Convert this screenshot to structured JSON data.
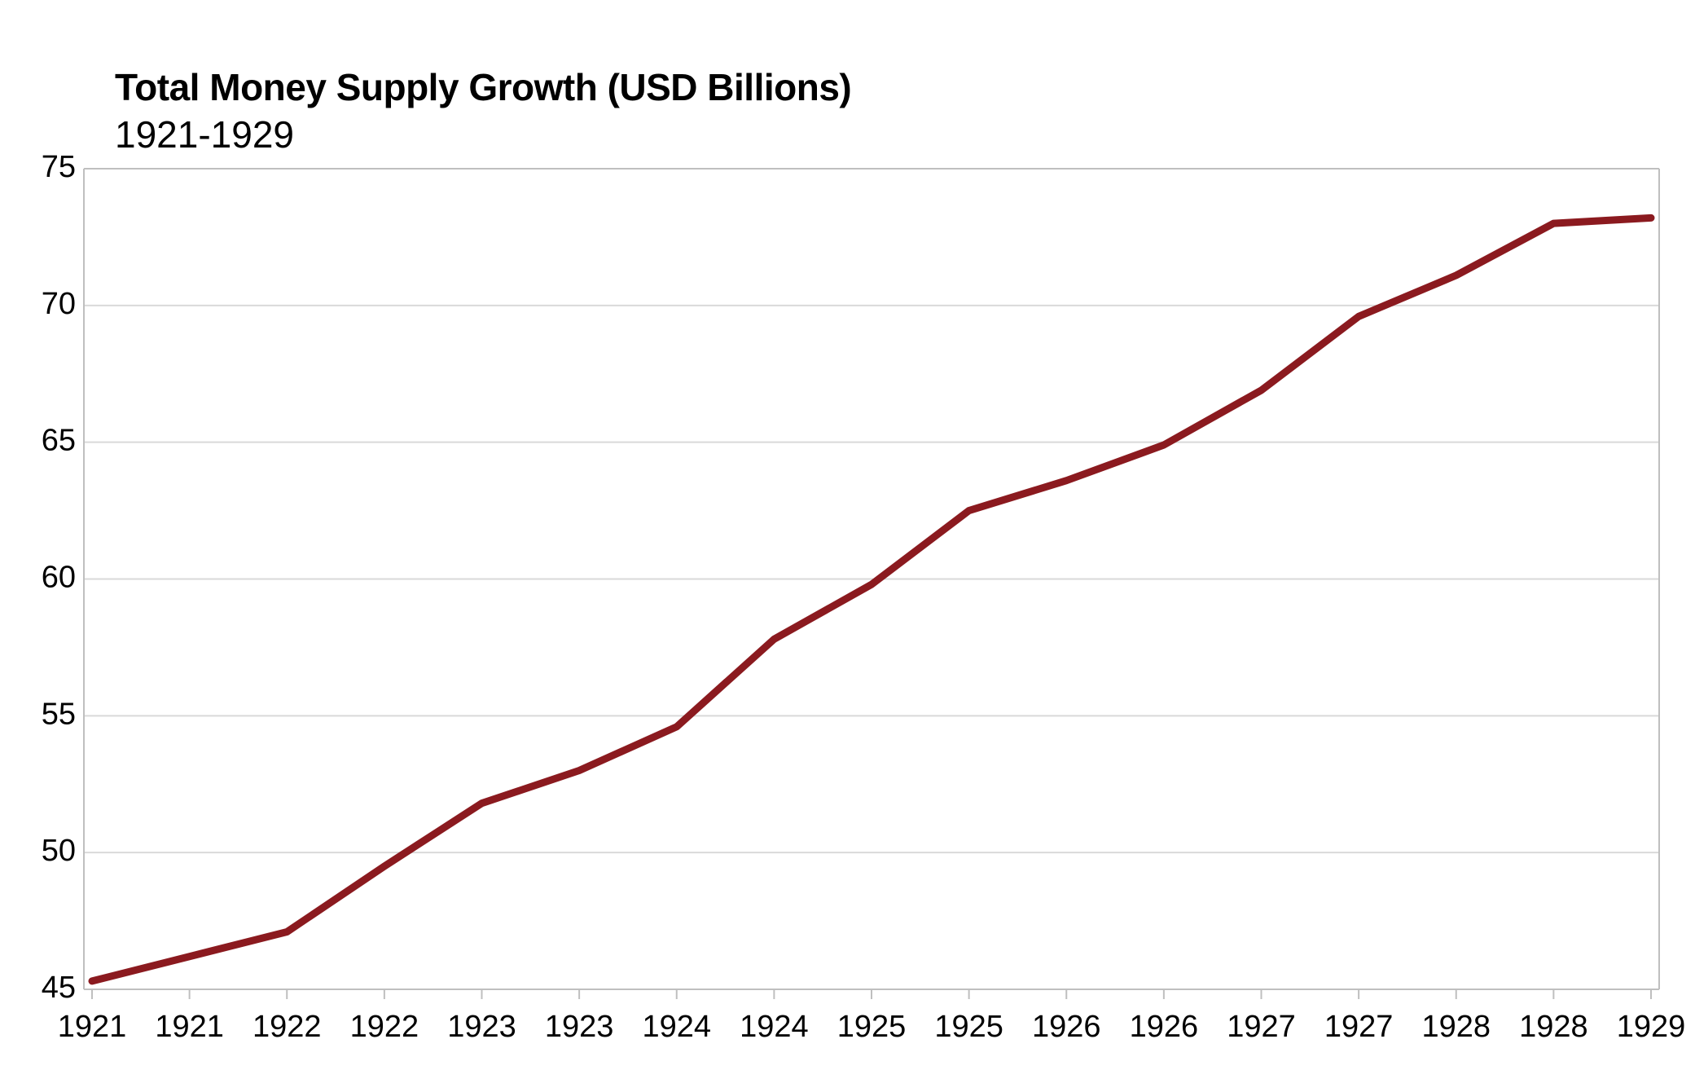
{
  "chart_data": {
    "type": "line",
    "title": "Total Money Supply Growth (USD Billions)",
    "subtitle": "1921-1929",
    "xlabel": "",
    "ylabel": "",
    "x_tick_labels": [
      "1921",
      "1921",
      "1922",
      "1922",
      "1923",
      "1923",
      "1924",
      "1924",
      "1925",
      "1925",
      "1926",
      "1926",
      "1927",
      "1927",
      "1928",
      "1928",
      "1929"
    ],
    "y_ticks": [
      45,
      50,
      55,
      60,
      65,
      70,
      75
    ],
    "y_tick_labels": [
      "45",
      "50",
      "55",
      "60",
      "65",
      "70",
      "75"
    ],
    "ylim": [
      45,
      75
    ],
    "grid": true,
    "legend": "none",
    "series": [
      {
        "color": "#8B1A1F",
        "values": [
          45.3,
          46.2,
          47.1,
          49.5,
          51.8,
          53.0,
          54.6,
          57.8,
          59.8,
          62.5,
          63.6,
          64.9,
          66.9,
          69.6,
          71.1,
          73.0,
          73.2
        ]
      }
    ]
  }
}
